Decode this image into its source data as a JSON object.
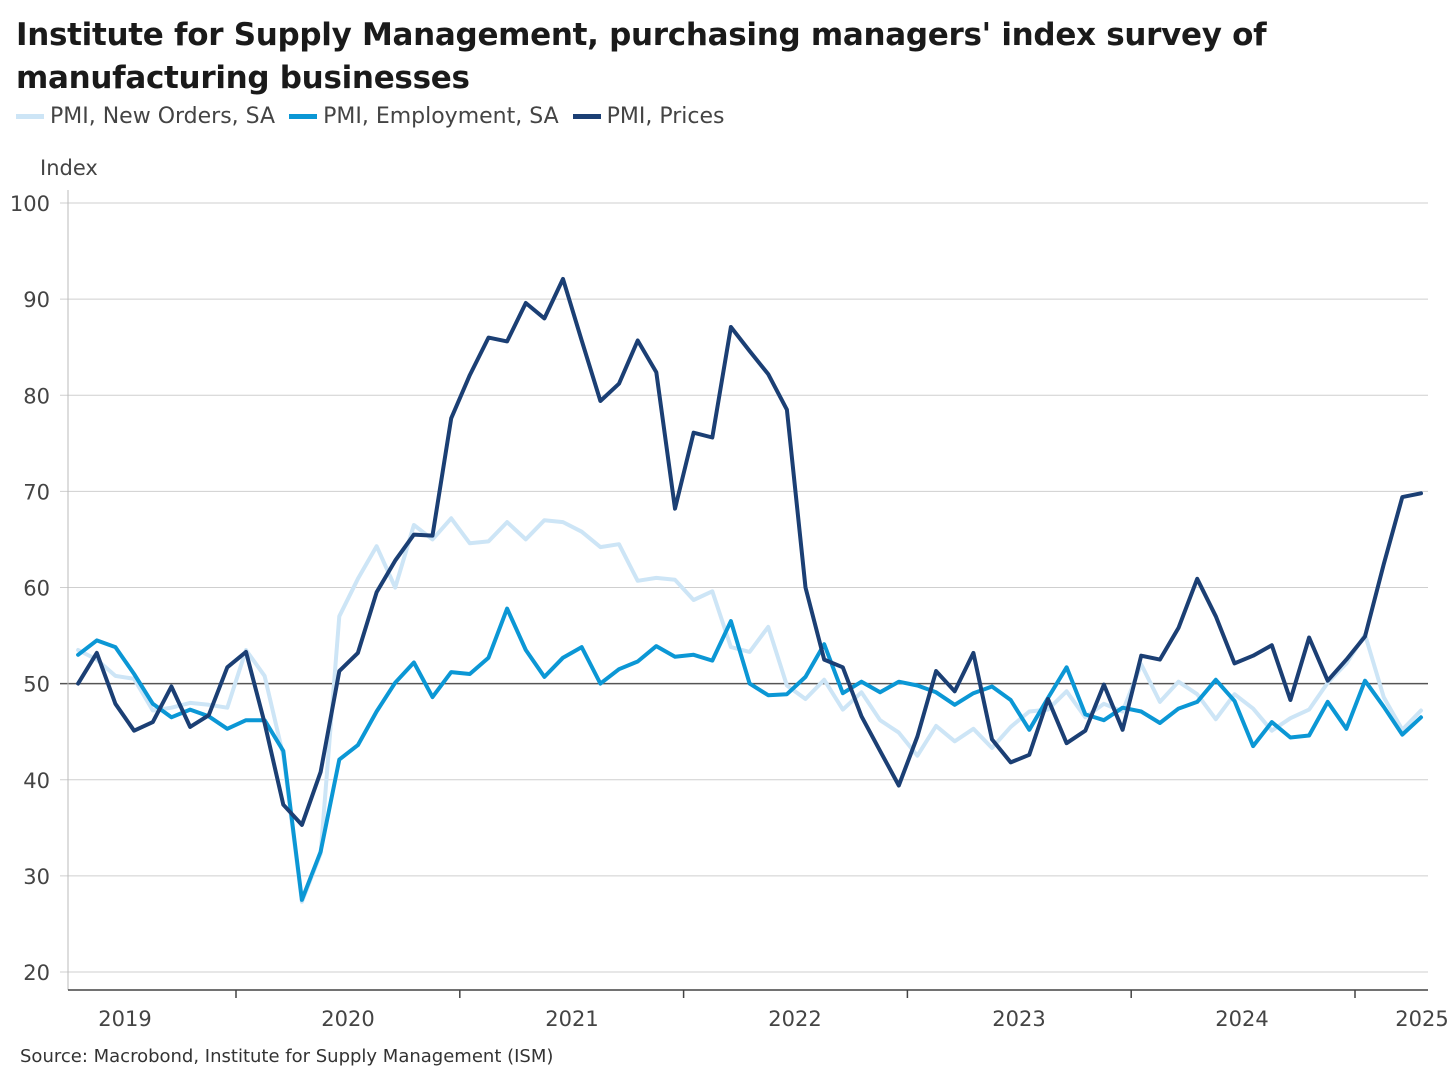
{
  "title": "Institute for Supply Management, purchasing managers' index survey of manufacturing businesses",
  "source": "Source: Macrobond, Institute for Supply Management (ISM)",
  "chart_data": {
    "type": "line",
    "title": "Institute for Supply Management, purchasing managers' index survey of manufacturing businesses",
    "ylabel": "Index",
    "xlabel": "",
    "ylim": [
      20,
      100
    ],
    "yticks": [
      20,
      30,
      40,
      50,
      60,
      70,
      80,
      90,
      100
    ],
    "reference_line": 50,
    "xticks": [
      "2019",
      "2020",
      "2021",
      "2022",
      "2023",
      "2024",
      "2025"
    ],
    "x_start": "2019-04",
    "x_end": "2025-04",
    "frequency": "monthly",
    "grid": "horizontal",
    "legend_position": "top-left",
    "series": [
      {
        "name": "PMI, New Orders, SA",
        "color": "#cde5f6",
        "values": [
          53.5,
          52.5,
          50.8,
          50.5,
          47.2,
          47.5,
          48.0,
          47.8,
          47.5,
          53.5,
          50.8,
          42.5,
          27.3,
          32.3,
          57.0,
          60.9,
          64.3,
          60.0,
          66.5,
          65.0,
          67.2,
          64.6,
          64.8,
          66.8,
          65.0,
          67.0,
          66.8,
          65.8,
          64.2,
          64.5,
          60.7,
          61.0,
          60.8,
          58.7,
          59.6,
          53.8,
          53.3,
          55.9,
          49.8,
          48.4,
          50.4,
          47.3,
          49.1,
          46.2,
          44.9,
          42.5,
          45.6,
          44.0,
          45.3,
          43.3,
          45.5,
          47.1,
          47.3,
          49.2,
          46.5,
          47.9,
          47.1,
          52.0,
          48.1,
          50.2,
          48.9,
          46.3,
          48.9,
          47.4,
          45.1,
          46.4,
          47.3,
          50.1,
          52.1,
          55.1,
          48.6,
          45.2,
          47.2
        ]
      },
      {
        "name": "PMI, Employment, SA",
        "color": "#0b97d5",
        "values": [
          53.0,
          54.5,
          53.8,
          51.0,
          47.9,
          46.5,
          47.3,
          46.6,
          45.3,
          46.2,
          46.2,
          43.0,
          27.5,
          32.5,
          42.1,
          43.6,
          47.1,
          50.1,
          52.2,
          48.6,
          51.2,
          51.0,
          52.7,
          57.8,
          53.5,
          50.7,
          52.7,
          53.8,
          50.0,
          51.5,
          52.3,
          53.9,
          52.8,
          53.0,
          52.4,
          56.5,
          50.0,
          48.8,
          48.9,
          50.7,
          54.1,
          49.0,
          50.2,
          49.1,
          50.2,
          49.8,
          49.1,
          47.8,
          49.0,
          49.7,
          48.3,
          45.2,
          48.5,
          51.7,
          46.8,
          46.2,
          47.5,
          47.1,
          45.9,
          47.4,
          48.1,
          50.4,
          48.2,
          43.5,
          46.0,
          44.4,
          44.6,
          48.1,
          45.3,
          50.3,
          47.6,
          44.7,
          46.5
        ]
      },
      {
        "name": "PMI, Prices",
        "color": "#1b3f74",
        "values": [
          50.0,
          53.2,
          47.9,
          45.1,
          46.0,
          49.7,
          45.5,
          46.7,
          51.7,
          53.3,
          45.9,
          37.4,
          35.3,
          40.8,
          51.3,
          53.2,
          59.5,
          62.8,
          65.5,
          65.4,
          77.6,
          82.1,
          86.0,
          85.6,
          89.6,
          88.0,
          92.1,
          85.7,
          79.4,
          81.2,
          85.7,
          82.4,
          68.2,
          76.1,
          75.6,
          87.1,
          84.6,
          82.2,
          78.5,
          60.0,
          52.5,
          51.7,
          46.6,
          43.0,
          39.4,
          44.5,
          51.3,
          49.2,
          53.2,
          44.2,
          41.8,
          42.6,
          48.4,
          43.8,
          45.1,
          49.9,
          45.2,
          52.9,
          52.5,
          55.8,
          60.9,
          57.0,
          52.1,
          52.9,
          54.0,
          48.3,
          54.8,
          50.3,
          52.5,
          54.9,
          62.4,
          69.4,
          69.8
        ]
      }
    ]
  }
}
